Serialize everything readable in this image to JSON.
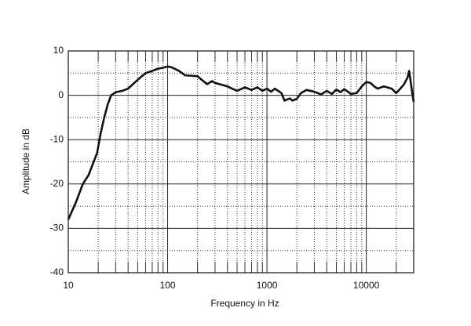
{
  "chart_data": {
    "type": "line",
    "xlabel": "Frequency in Hz",
    "ylabel": "Amplitude in dB",
    "xscale": "log",
    "xlim": [
      10,
      30000
    ],
    "ylim": [
      -40,
      10
    ],
    "xticks": [
      10,
      100,
      1000,
      10000
    ],
    "xminorticks": [
      20,
      30,
      40,
      50,
      60,
      70,
      80,
      90,
      200,
      300,
      400,
      500,
      600,
      700,
      800,
      900,
      2000,
      3000,
      4000,
      5000,
      6000,
      7000,
      8000,
      9000,
      20000
    ],
    "yticks": [
      -40,
      -30,
      -20,
      -10,
      0,
      10
    ],
    "yminorticks": [
      -35,
      -25,
      -15,
      -5,
      5
    ],
    "grid": true,
    "color": "#111111",
    "x": [
      10,
      12,
      14,
      16,
      18,
      19.5,
      21,
      23,
      25,
      27,
      30,
      35,
      40,
      50,
      60,
      70,
      80,
      90,
      100,
      110,
      130,
      150,
      200,
      220,
      250,
      280,
      300,
      400,
      500,
      600,
      700,
      800,
      900,
      1000,
      1100,
      1200,
      1400,
      1500,
      1700,
      1800,
      2000,
      2200,
      2500,
      3000,
      3500,
      4000,
      4500,
      5000,
      5500,
      6000,
      7000,
      8000,
      9000,
      10000,
      11000,
      12000,
      13000,
      15000,
      18000,
      20000,
      22000,
      24000,
      26000,
      27000,
      28000,
      29000,
      30000
    ],
    "values": [
      -28,
      -24,
      -20,
      -18,
      -15,
      -13,
      -9,
      -5,
      -2,
      0,
      0.7,
      1,
      1.5,
      3.5,
      5,
      5.5,
      6,
      6.2,
      6.5,
      6.3,
      5.5,
      4.5,
      4.3,
      3.5,
      2.5,
      3.2,
      2.8,
      2,
      1,
      1.8,
      1.2,
      1.8,
      1,
      1.5,
      0.8,
      1.5,
      0.5,
      -1.2,
      -0.7,
      -1.2,
      -0.8,
      0.5,
      1.2,
      0.8,
      0.2,
      1,
      0.3,
      1.3,
      0.7,
      1.4,
      0.3,
      0.5,
      2,
      3,
      2.8,
      2,
      1.5,
      2,
      1.5,
      0.5,
      1.5,
      2.5,
      4,
      5.5,
      3,
      0.5,
      -1.5
    ]
  }
}
